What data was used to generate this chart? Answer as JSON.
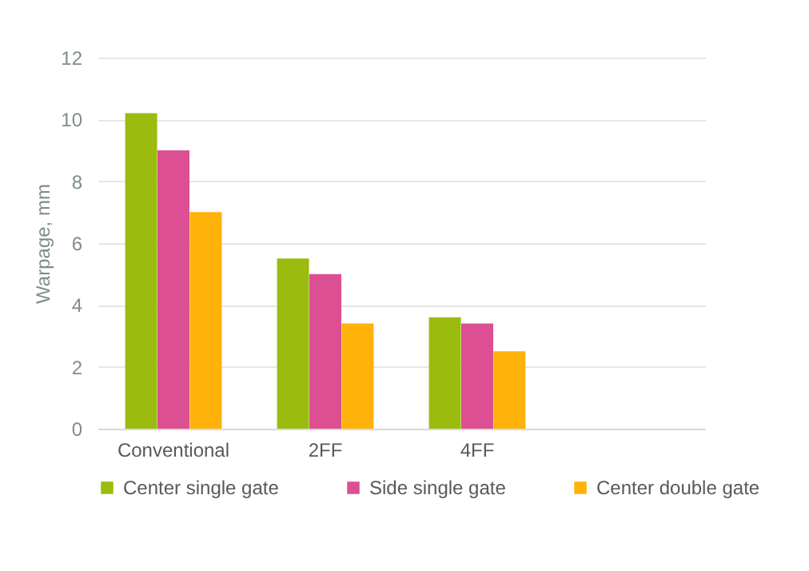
{
  "chart_data": {
    "type": "bar",
    "ylabel": "Warpage, mm",
    "categories": [
      "Conventional",
      "2FF",
      "4FF",
      null
    ],
    "series": [
      {
        "name": "Center single gate",
        "color": "#9bbb0e",
        "values": [
          10.2,
          5.5,
          3.6,
          null
        ]
      },
      {
        "name": "Side single gate",
        "color": "#dc4f93",
        "values": [
          9,
          5,
          3.4,
          null
        ]
      },
      {
        "name": "Center double gate",
        "color": "#ffb20a",
        "values": [
          7,
          3.4,
          2.5,
          null
        ]
      }
    ],
    "ylim": [
      0,
      12
    ],
    "yticks": [
      0,
      2,
      4,
      6,
      8,
      10,
      12
    ],
    "grid": "y",
    "legend": "bottom"
  }
}
